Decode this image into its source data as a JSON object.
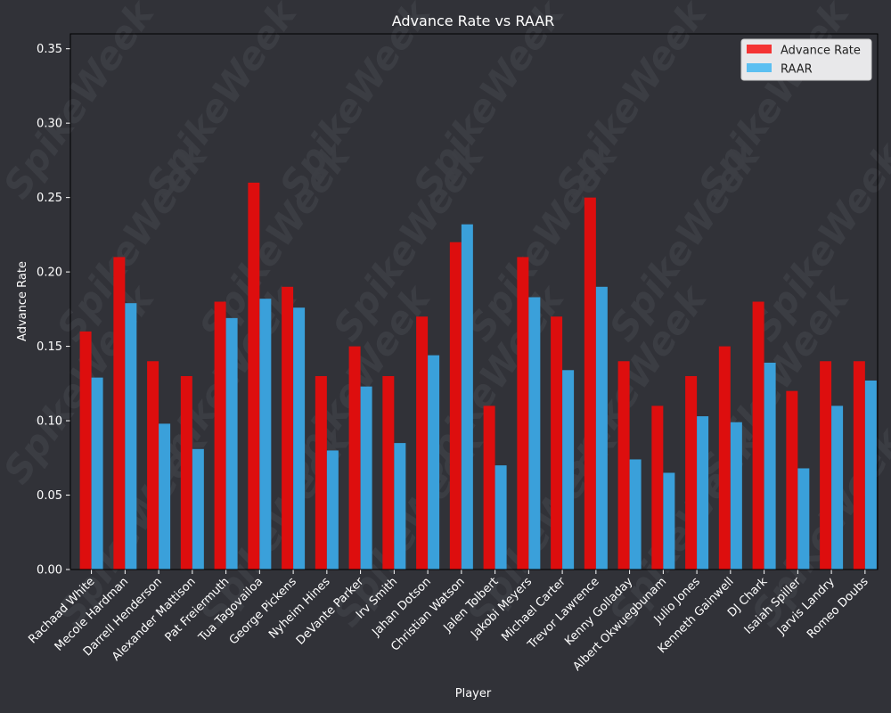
{
  "chart_data": {
    "type": "bar",
    "title": "Advance Rate vs RAAR",
    "xlabel": "Player",
    "ylabel": "Advance Rate",
    "ylim": [
      0,
      0.36
    ],
    "yticks": [
      "0.00",
      "0.05",
      "0.10",
      "0.15",
      "0.20",
      "0.25",
      "0.30",
      "0.35"
    ],
    "grid": false,
    "legend_position": "top-right",
    "watermark": "SpikeWeek",
    "categories": [
      "Rachaad White",
      "Mecole Hardman",
      "Darrell Henderson",
      "Alexander Mattison",
      "Pat Freiermuth",
      "Tua Tagovailoa",
      "George Pickens",
      "Nyheim Hines",
      "DeVante Parker",
      "Irv Smith",
      "Jahan Dotson",
      "Christian Watson",
      "Jalen Tolbert",
      "Jakobi Meyers",
      "Michael Carter",
      "Trevor Lawrence",
      "Kenny Golladay",
      "Albert Okwuegbunam",
      "Julio Jones",
      "Kenneth Gainwell",
      "DJ Chark",
      "Isaiah Spiller",
      "Jarvis Landry",
      "Romeo Doubs"
    ],
    "series": [
      {
        "name": "Advance Rate",
        "color": "#dd0e0e",
        "legend_color": "#f43434",
        "values": [
          0.16,
          0.21,
          0.14,
          0.13,
          0.18,
          0.26,
          0.19,
          0.13,
          0.15,
          0.13,
          0.17,
          0.22,
          0.11,
          0.21,
          0.17,
          0.25,
          0.14,
          0.11,
          0.13,
          0.15,
          0.18,
          0.12,
          0.14,
          0.14
        ]
      },
      {
        "name": "RAAR",
        "color": "#3aa0da",
        "legend_color": "#5bbff1",
        "values": [
          0.129,
          0.179,
          0.098,
          0.081,
          0.169,
          0.182,
          0.176,
          0.08,
          0.123,
          0.085,
          0.144,
          0.232,
          0.07,
          0.183,
          0.134,
          0.19,
          0.074,
          0.065,
          0.103,
          0.099,
          0.139,
          0.068,
          0.11,
          0.127
        ]
      }
    ]
  }
}
